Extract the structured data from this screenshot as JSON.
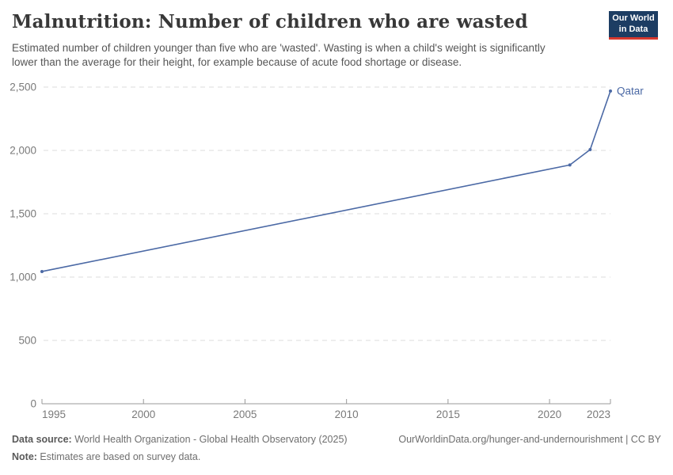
{
  "header": {
    "title": "Malnutrition: Number of children who are wasted",
    "subtitle": "Estimated number of children younger than five who are 'wasted'. Wasting is when a child's weight is significantly lower than the average for their height, for example because of acute food shortage or disease.",
    "logo_line1": "Our World",
    "logo_line2": "in Data"
  },
  "chart_data": {
    "type": "line",
    "title": "Malnutrition: Number of children who are wasted",
    "xlabel": "",
    "ylabel": "",
    "xlim": [
      1995,
      2023
    ],
    "ylim": [
      0,
      2500
    ],
    "x_ticks": [
      1995,
      2000,
      2005,
      2010,
      2015,
      2020,
      2023
    ],
    "y_ticks": [
      0,
      500,
      1000,
      1500,
      2000,
      2500
    ],
    "grid": "horizontal-dashed",
    "legend_position": "end-of-line-label",
    "series": [
      {
        "name": "Qatar",
        "points": [
          {
            "x": 1995,
            "y": 1044
          },
          {
            "x": 2021,
            "y": 1885
          },
          {
            "x": 2022,
            "y": 2006
          },
          {
            "x": 2023,
            "y": 2469
          }
        ]
      }
    ]
  },
  "colors": {
    "line": "#4b69a5",
    "grid": "#dcdcdc",
    "axis": "#999999",
    "tick_text": "#7a7a7a",
    "entity_label": "#4b69a5",
    "logo_bg": "#1d3d63",
    "logo_bar": "#d7382e"
  },
  "footer": {
    "datasource_label": "Data source:",
    "datasource_text": " World Health Organization - Global Health Observatory (2025)",
    "url_text": "OurWorldinData.org/hunger-and-undernourishment | CC BY",
    "note_label": "Note:",
    "note_text": " Estimates are based on survey data."
  }
}
